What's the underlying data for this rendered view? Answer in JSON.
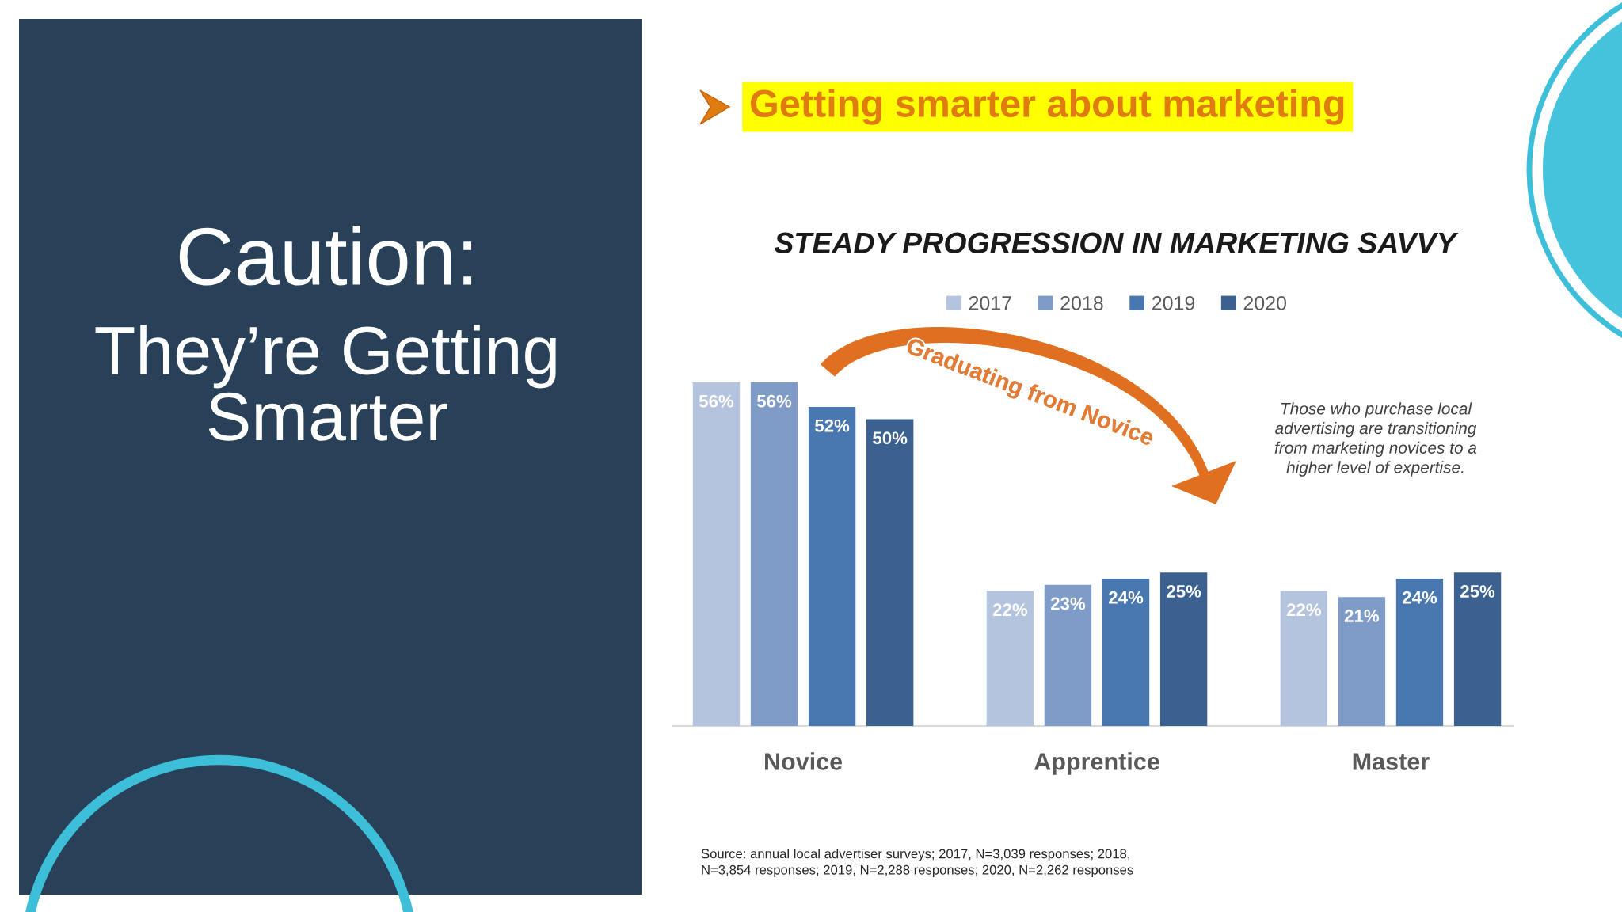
{
  "chart_data": {
    "type": "bar",
    "title": "STEADY PROGRESSION IN MARKETING SAVVY",
    "categories": [
      "Novice",
      "Apprentice",
      "Master"
    ],
    "series": [
      {
        "name": "2017",
        "color": "#b5c4de",
        "values": [
          56,
          22,
          22
        ],
        "value_labels": [
          "56%",
          "22%",
          "22%"
        ]
      },
      {
        "name": "2018",
        "color": "#7f9cc9",
        "values": [
          56,
          23,
          21
        ],
        "value_labels": [
          "56%",
          "23%",
          "21%"
        ]
      },
      {
        "name": "2019",
        "color": "#4977b0",
        "values": [
          52,
          24,
          24
        ],
        "value_labels": [
          "52%",
          "24%",
          "24%"
        ]
      },
      {
        "name": "2020",
        "color": "#3b6191",
        "values": [
          50,
          25,
          25
        ],
        "value_labels": [
          "50%",
          "25%",
          "25%"
        ]
      }
    ],
    "legend": "top",
    "annotations": [
      "Caution:",
      "They’re Getting\nSmarter",
      "Getting smarter about marketing",
      "Graduating from Novice",
      "Those who purchase local\nadvertising are transitioning\nfrom marketing novices to a\nhigher level of expertise.",
      "Source: annual local advertiser surveys; 2017, N=3,039 responses; 2018,\nN=3,854 responses; 2019, N=2,288 responses; 2020, N=2,262 responses"
    ]
  }
}
